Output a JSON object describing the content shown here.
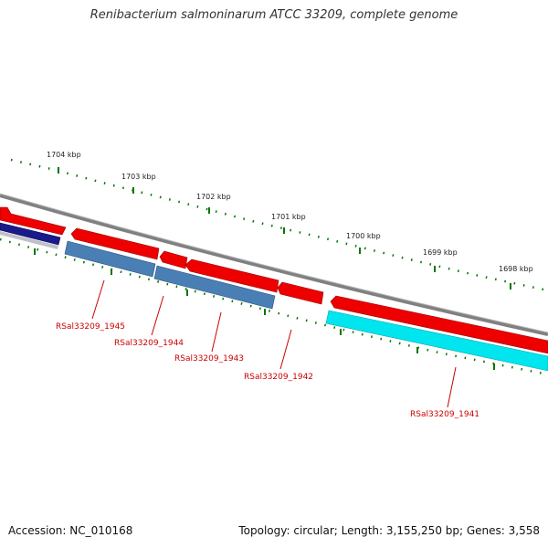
{
  "header": {
    "title": "Renibacterium salmoninarum ATCC 33209, complete genome"
  },
  "footer": {
    "accession": "Accession: NC_010168",
    "topology": "Topology: circular; Length: 3,155,250 bp; Genes: 3,558"
  },
  "colors": {
    "backbone": "#808080",
    "forward_gene": "#ee0000",
    "reverse_gene_blue": "#4a7fb5",
    "reverse_gene_cyan": "#00e5ee",
    "reverse_gene_navy": "#1a1a8c",
    "tick": "#007700",
    "label": "#cc0000"
  },
  "axis": {
    "unit": "kbp",
    "tick_labels": [
      "1704 kbp",
      "1703 kbp",
      "1702 kbp",
      "1701 kbp",
      "1700 kbp",
      "1699 kbp",
      "1698 kbp"
    ]
  },
  "gene_labels": [
    "RSal33209_1945",
    "RSal33209_1944",
    "RSal33209_1943",
    "RSal33209_1942",
    "RSal33209_1941"
  ]
}
